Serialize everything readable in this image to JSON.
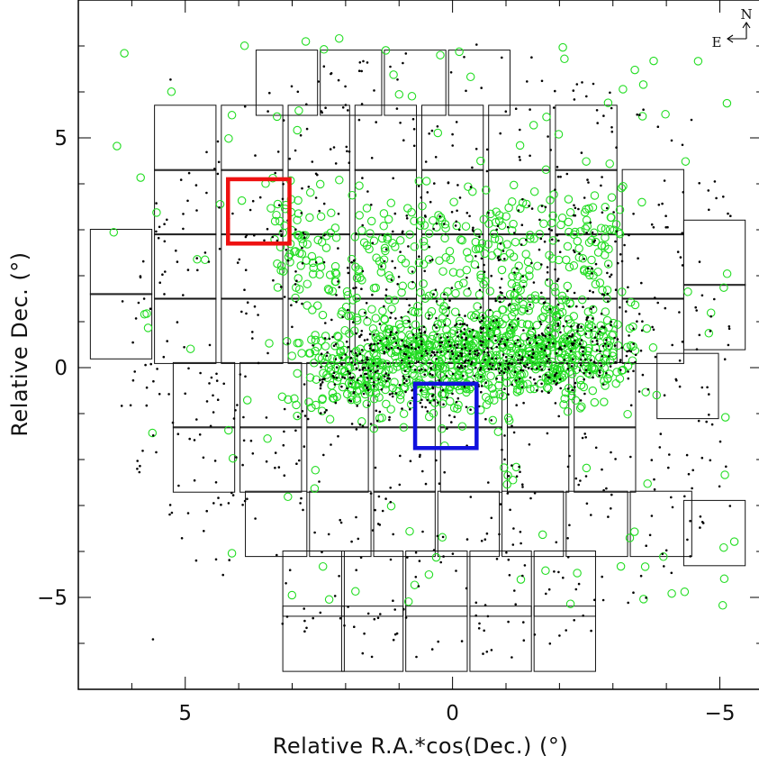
{
  "chart_data": {
    "type": "scatter",
    "title": "",
    "xlabel": "Relative R.A.*cos(Dec.) (°)",
    "ylabel": "Relative Dec. (°)",
    "xlim": [
      7.0,
      -5.8
    ],
    "ylim": [
      -7.0,
      8.0
    ],
    "x_ticks": [
      5,
      0,
      -5
    ],
    "x_tick_labels": [
      "5",
      "0",
      "−5"
    ],
    "y_ticks": [
      5,
      0,
      -5
    ],
    "y_tick_labels": [
      "5",
      "0",
      "−5"
    ],
    "grid": false,
    "compass": {
      "north": "N",
      "east": "E"
    },
    "series": [
      {
        "marker": "dot",
        "color": "#000000"
      },
      {
        "marker": "open-circle",
        "color": "#22dd22"
      }
    ],
    "highlight_fields": [
      {
        "color": "#ee1111",
        "x_range": [
          3.05,
          4.2
        ],
        "y_range": [
          2.7,
          4.1
        ]
      },
      {
        "color": "#1111dd",
        "x_range": [
          -0.45,
          0.7
        ],
        "y_range": [
          -1.75,
          -0.35
        ]
      }
    ],
    "fields": [
      {
        "x": 5.0,
        "y": 5.0
      },
      {
        "x": 3.75,
        "y": 5.0
      },
      {
        "x": 2.5,
        "y": 5.0
      },
      {
        "x": 1.25,
        "y": 5.0
      },
      {
        "x": 0.0,
        "y": 5.0
      },
      {
        "x": -1.25,
        "y": 5.0
      },
      {
        "x": -2.5,
        "y": 5.0
      },
      {
        "x": 3.1,
        "y": 6.2
      },
      {
        "x": 1.9,
        "y": 6.2
      },
      {
        "x": 0.7,
        "y": 6.2
      },
      {
        "x": -0.5,
        "y": 6.2
      },
      {
        "x": 5.0,
        "y": 3.6
      },
      {
        "x": 3.75,
        "y": 3.6
      },
      {
        "x": 2.5,
        "y": 3.6
      },
      {
        "x": 1.25,
        "y": 3.6
      },
      {
        "x": 0.0,
        "y": 3.6
      },
      {
        "x": -1.25,
        "y": 3.6
      },
      {
        "x": -2.5,
        "y": 3.6
      },
      {
        "x": -3.75,
        "y": 3.6
      },
      {
        "x": 6.2,
        "y": 2.3
      },
      {
        "x": 5.0,
        "y": 2.2
      },
      {
        "x": 3.75,
        "y": 2.2
      },
      {
        "x": 2.5,
        "y": 2.2
      },
      {
        "x": 1.25,
        "y": 2.2
      },
      {
        "x": 0.0,
        "y": 2.2
      },
      {
        "x": -1.25,
        "y": 2.2
      },
      {
        "x": -2.5,
        "y": 2.2
      },
      {
        "x": -3.75,
        "y": 2.2
      },
      {
        "x": -4.9,
        "y": 2.5
      },
      {
        "x": 6.2,
        "y": 0.9
      },
      {
        "x": 5.0,
        "y": 0.8
      },
      {
        "x": 3.75,
        "y": 0.8
      },
      {
        "x": 2.5,
        "y": 0.8
      },
      {
        "x": 1.25,
        "y": 0.8
      },
      {
        "x": 0.0,
        "y": 0.8
      },
      {
        "x": -1.25,
        "y": 0.8
      },
      {
        "x": -2.5,
        "y": 0.8
      },
      {
        "x": -3.75,
        "y": 0.8
      },
      {
        "x": -4.9,
        "y": 1.1
      },
      {
        "x": 4.65,
        "y": -0.6
      },
      {
        "x": 3.4,
        "y": -0.6
      },
      {
        "x": 2.15,
        "y": -0.6
      },
      {
        "x": 0.9,
        "y": -0.6
      },
      {
        "x": -0.35,
        "y": -0.6
      },
      {
        "x": -1.6,
        "y": -0.6
      },
      {
        "x": -2.85,
        "y": -0.6
      },
      {
        "x": -4.4,
        "y": -0.4
      },
      {
        "x": 4.65,
        "y": -2.0
      },
      {
        "x": 3.4,
        "y": -2.0
      },
      {
        "x": 2.15,
        "y": -2.0
      },
      {
        "x": 0.9,
        "y": -2.0
      },
      {
        "x": -0.35,
        "y": -2.0
      },
      {
        "x": -1.6,
        "y": -2.0
      },
      {
        "x": -2.85,
        "y": -2.0
      },
      {
        "x": 3.3,
        "y": -3.4
      },
      {
        "x": 2.1,
        "y": -3.4
      },
      {
        "x": 0.9,
        "y": -3.4
      },
      {
        "x": -0.3,
        "y": -3.4
      },
      {
        "x": -1.5,
        "y": -3.4
      },
      {
        "x": -2.7,
        "y": -3.4
      },
      {
        "x": -3.9,
        "y": -3.4
      },
      {
        "x": -4.9,
        "y": -3.6
      },
      {
        "x": 2.6,
        "y": -4.7
      },
      {
        "x": 1.5,
        "y": -4.7
      },
      {
        "x": 0.3,
        "y": -4.7
      },
      {
        "x": -0.9,
        "y": -4.7
      },
      {
        "x": -2.1,
        "y": -4.7
      },
      {
        "x": 2.6,
        "y": -5.9
      },
      {
        "x": 1.5,
        "y": -5.9
      },
      {
        "x": 0.3,
        "y": -5.9
      },
      {
        "x": -0.9,
        "y": -5.9
      },
      {
        "x": -2.1,
        "y": -5.9
      }
    ]
  }
}
